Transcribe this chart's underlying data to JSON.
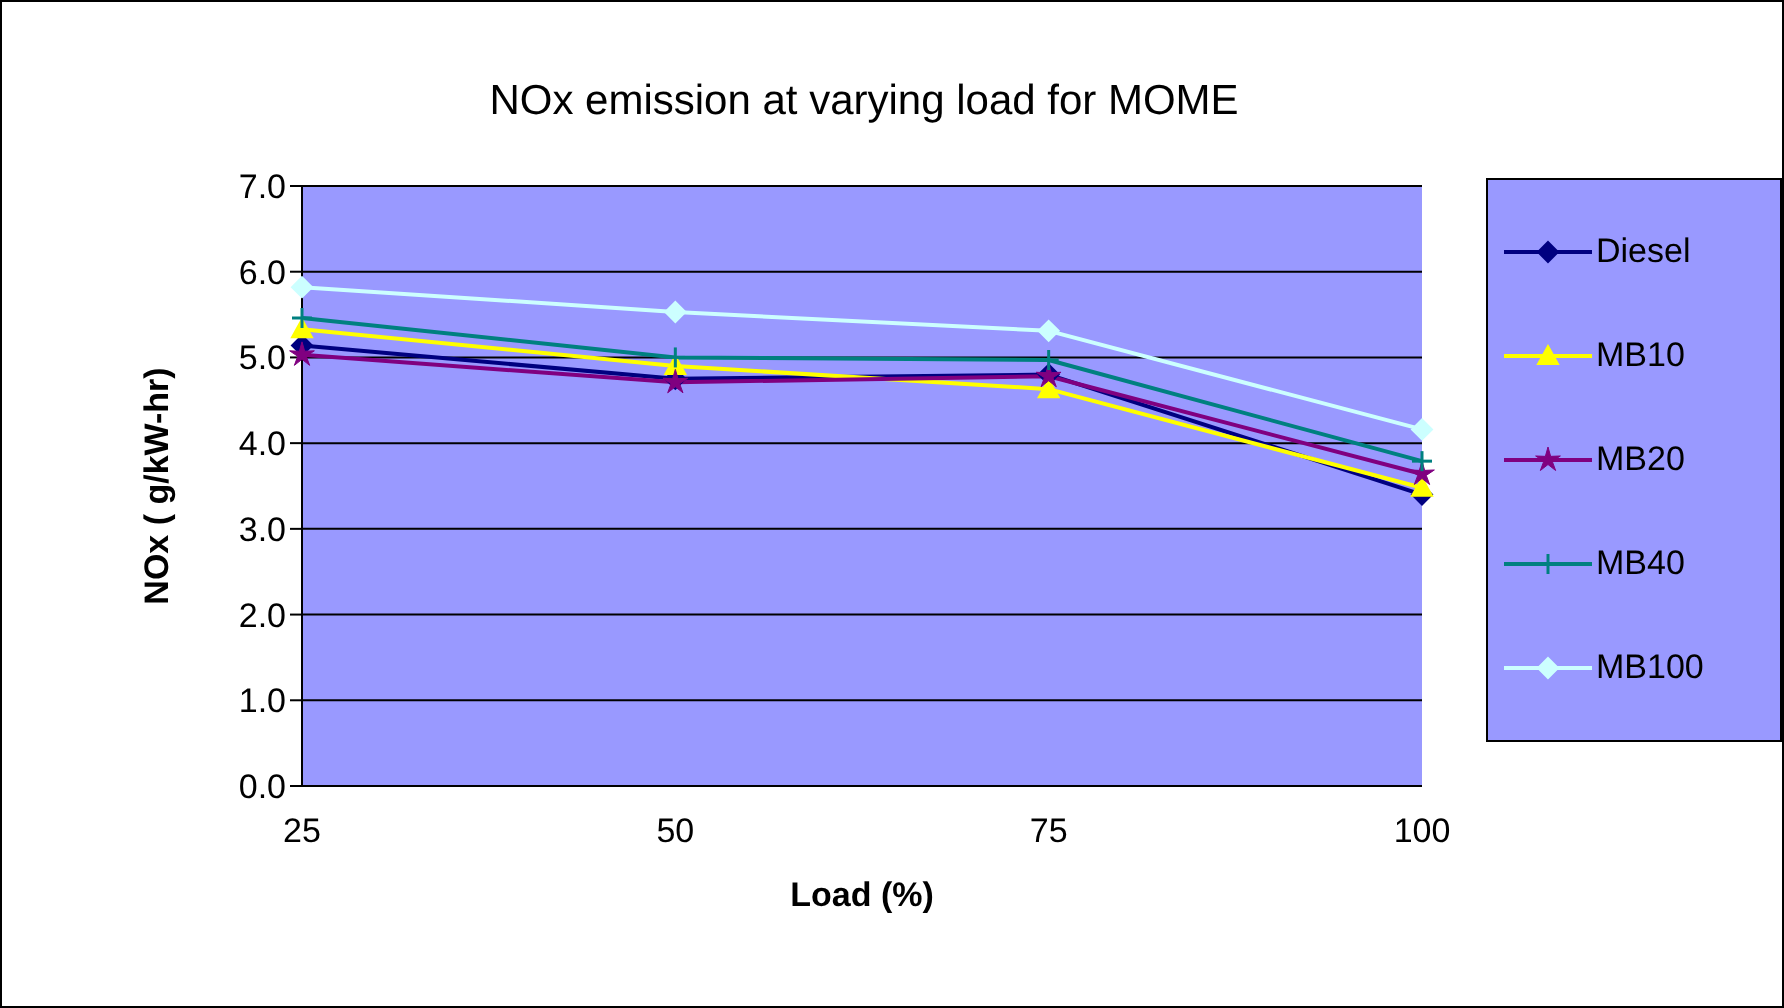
{
  "chart_data": {
    "type": "line",
    "title": "NOx emission at varying load for MOME",
    "xlabel": "Load (%)",
    "ylabel": "NOx ( g/kW-hr)",
    "categories": [
      "25",
      "50",
      "75",
      "100"
    ],
    "ylim": [
      0,
      7
    ],
    "yticks": [
      {
        "value": 0,
        "label": "0.0"
      },
      {
        "value": 1,
        "label": "1.0"
      },
      {
        "value": 2,
        "label": "2.0"
      },
      {
        "value": 3,
        "label": "3.0"
      },
      {
        "value": 4,
        "label": "4.0"
      },
      {
        "value": 5,
        "label": "5.0"
      },
      {
        "value": 6,
        "label": "6.0"
      },
      {
        "value": 7,
        "label": "7.0"
      }
    ],
    "grid": "y",
    "legend": "right",
    "series": [
      {
        "name": "Diesel",
        "color": "#000080",
        "marker": "diamond",
        "values": [
          5.14,
          4.75,
          4.8,
          3.4
        ]
      },
      {
        "name": "MB10",
        "color": "#ffff00",
        "marker": "triangle",
        "values": [
          5.33,
          4.9,
          4.63,
          3.48
        ]
      },
      {
        "name": "MB20",
        "color": "#800080",
        "marker": "star",
        "values": [
          5.03,
          4.71,
          4.78,
          3.64
        ]
      },
      {
        "name": "MB40",
        "color": "#008080",
        "marker": "cross",
        "values": [
          5.46,
          5.0,
          4.97,
          3.79
        ]
      },
      {
        "name": "MB100",
        "color": "#ccffff",
        "marker": "diamond",
        "values": [
          5.82,
          5.53,
          5.31,
          4.16
        ]
      }
    ]
  }
}
